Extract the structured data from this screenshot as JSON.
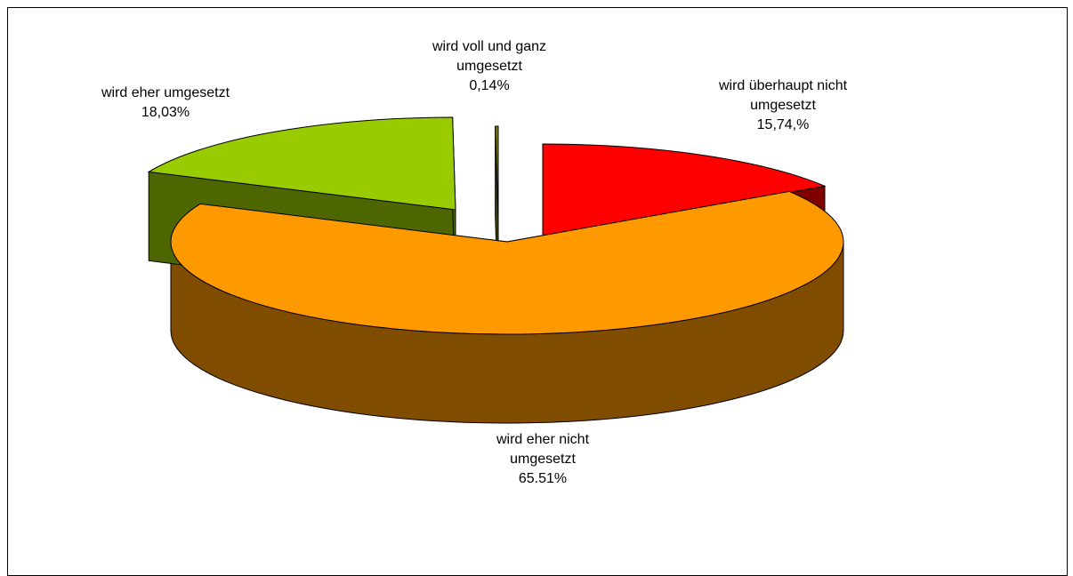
{
  "chart_data": {
    "type": "pie",
    "style": "3d-exploded",
    "categories": [
      "wird überhaupt nicht umgesetzt",
      "wird eher nicht umgesetzt",
      "wird eher umgesetzt",
      "wird voll und ganz umgesetzt"
    ],
    "values": [
      15.74,
      65.51,
      18.03,
      0.14
    ],
    "colors": {
      "top": [
        "#ff0000",
        "#ff9900",
        "#99cc00",
        "#808000"
      ],
      "side": [
        "#800000",
        "#804c00",
        "#4d6600",
        "#404000"
      ]
    },
    "labels": [
      {
        "lines": [
          "wird überhaupt nicht",
          "umgesetzt",
          "15,74,%"
        ]
      },
      {
        "lines": [
          "wird eher nicht",
          "umgesetzt",
          "65.51%"
        ]
      },
      {
        "lines": [
          "wird eher umgesetzt",
          "18,03%"
        ]
      },
      {
        "lines": [
          "wird voll und ganz",
          "umgesetzt",
          "0,14%"
        ]
      }
    ],
    "title": "",
    "legend": "none"
  }
}
